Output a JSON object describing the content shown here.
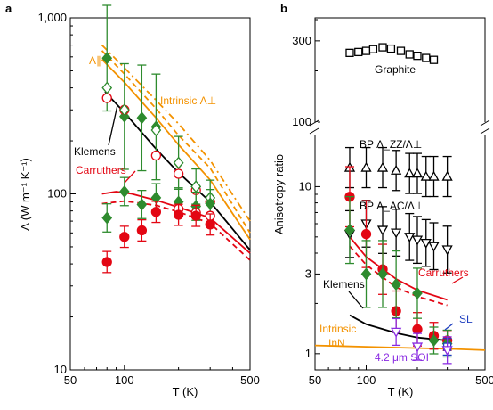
{
  "panels": [
    {
      "label": "a"
    },
    {
      "label": "b"
    }
  ],
  "colors": {
    "orange": "#F39200",
    "red": "#E30613",
    "green": "#2E8B2E",
    "black": "#000000",
    "purple": "#8A2BE2",
    "blue": "#1F3FBF"
  },
  "chart_data": [
    {
      "panel": "a",
      "type": "line",
      "xscale": "log",
      "yscale": "log",
      "xlabel": "T (K)",
      "ylabel": "Λ (W m⁻¹ K⁻¹)",
      "xlim": [
        50,
        500
      ],
      "ylim": [
        10,
        1000
      ],
      "xticks": [
        {
          "v": 50,
          "label": "50"
        },
        {
          "v": 100,
          "label": "100"
        },
        {
          "v": 500,
          "label": "500"
        }
      ],
      "yticks": [
        {
          "v": 10,
          "label": "10"
        },
        {
          "v": 100,
          "label": "100"
        },
        {
          "v": 1000,
          "label": "1,000"
        }
      ],
      "annotations": {
        "para": "Λ∥",
        "intrinsic_perp": "Intrinsic Λ⊥",
        "klemens": "Klemens",
        "carruthers": "Carruthers"
      },
      "curves": [
        {
          "key": "para_model",
          "color": "orange",
          "dash": "8,4,2,4",
          "x": [
            75,
            100,
            150,
            200,
            300,
            500
          ],
          "y": [
            700,
            520,
            340,
            250,
            155,
            70
          ]
        },
        {
          "key": "perp_intrinsic_solid",
          "color": "orange",
          "dash": "",
          "x": [
            75,
            100,
            150,
            200,
            300,
            500
          ],
          "y": [
            580,
            430,
            270,
            190,
            120,
            55
          ]
        },
        {
          "key": "perp_intrinsic_dashed",
          "color": "orange",
          "dash": "6,4",
          "x": [
            75,
            100,
            150,
            200,
            300,
            500
          ],
          "y": [
            650,
            480,
            305,
            215,
            140,
            60
          ]
        },
        {
          "key": "klemens",
          "color": "black",
          "dash": "",
          "x": [
            78,
            100,
            150,
            200,
            300,
            500
          ],
          "y": [
            380,
            290,
            180,
            132,
            90,
            48
          ]
        },
        {
          "key": "carruthers_solid",
          "color": "red",
          "dash": "",
          "x": [
            75,
            90,
            110,
            150,
            200,
            300,
            500
          ],
          "y": [
            100,
            103,
            100,
            92,
            84,
            73,
            46
          ]
        },
        {
          "key": "carruthers_dashed",
          "color": "red",
          "dash": "6,4",
          "x": [
            75,
            100,
            150,
            200,
            300,
            500
          ],
          "y": [
            88,
            91,
            86,
            79,
            68,
            42
          ]
        }
      ],
      "series": [
        {
          "key": "green_diamond_top",
          "color": "green",
          "marker": "diamond",
          "fill": true,
          "x": [
            80,
            100,
            125,
            150,
            200,
            250,
            300
          ],
          "y": [
            590,
            275,
            270,
            240,
            150,
            110,
            95
          ],
          "err": [
            0.3,
            0.3,
            0.3,
            0.3,
            0.15,
            0.1,
            0.1
          ]
        },
        {
          "key": "open_circle_top",
          "color": "red",
          "marker": "circle",
          "fill": false,
          "x": [
            80,
            100,
            150,
            200,
            250,
            300
          ],
          "y": [
            350,
            300,
            165,
            130,
            105,
            90
          ],
          "err": [
            0,
            0,
            0,
            0,
            0,
            0
          ]
        },
        {
          "key": "open_diamond_top",
          "color": "green",
          "marker": "diamond",
          "fill": false,
          "x": [
            80,
            100,
            150,
            200,
            250,
            300
          ],
          "y": [
            400,
            300,
            230,
            150,
            110,
            95
          ],
          "err": [
            0,
            0,
            0,
            0,
            0,
            0
          ]
        },
        {
          "key": "green_diamond_mid",
          "color": "green",
          "marker": "diamond",
          "fill": true,
          "x": [
            80,
            100,
            125,
            150,
            200,
            250,
            300
          ],
          "y": [
            73,
            103,
            87,
            95,
            90,
            85,
            88
          ],
          "err": [
            0.08,
            0.08,
            0.08,
            0.08,
            0.08,
            0.08,
            0.08
          ]
        },
        {
          "key": "open_circle_mid",
          "color": "red",
          "marker": "circle",
          "fill": false,
          "x": [
            200,
            250,
            300
          ],
          "y": [
            82,
            78,
            75
          ],
          "err": [
            0,
            0,
            0
          ]
        },
        {
          "key": "red_circle",
          "color": "red",
          "marker": "circle",
          "fill": true,
          "x": [
            80,
            100,
            125,
            150,
            200,
            250,
            300
          ],
          "y": [
            41,
            57,
            62,
            79,
            76,
            75,
            67
          ],
          "err": [
            0.06,
            0.06,
            0.06,
            0.06,
            0.06,
            0.06,
            0.06
          ]
        }
      ]
    },
    {
      "panel": "b",
      "type": "scatter",
      "xscale": "log",
      "yscale": "log-broken",
      "xlabel": "T (K)",
      "ylabel": "Anisotropy ratio",
      "xlim": [
        50,
        500
      ],
      "ylim_lower": [
        0.8,
        20
      ],
      "ylim_upper": [
        100,
        400
      ],
      "xticks": [
        {
          "v": 50,
          "label": "50"
        },
        {
          "v": 100,
          "label": "100"
        },
        {
          "v": 500,
          "label": "500"
        }
      ],
      "yticks_lower": [
        {
          "v": 1,
          "label": "1"
        },
        {
          "v": 3,
          "label": "3"
        },
        {
          "v": 10,
          "label": "10"
        }
      ],
      "yticks_upper": [
        {
          "v": 100,
          "label": "100"
        },
        {
          "v": 300,
          "label": "300"
        }
      ],
      "annotations": {
        "graphite": "Graphite",
        "bp_zz": "BP Λ_ZZ/Λ⊥",
        "bp_ac": "BP Λ_AC/Λ⊥",
        "carruthers": "Carruthers",
        "klemens": "Klemens",
        "intrinsic": "Intrinsic",
        "inn": "InN",
        "sl": "SL",
        "soi": "4.2 μm SOI"
      },
      "curves": [
        {
          "key": "carruthers_solid",
          "color": "red",
          "dash": "",
          "x": [
            80,
            100,
            150,
            200,
            300
          ],
          "y": [
            5.0,
            3.8,
            2.8,
            2.4,
            2.1
          ]
        },
        {
          "key": "carruthers_dashed",
          "color": "red",
          "dash": "6,4",
          "x": [
            80,
            100,
            150,
            200,
            300
          ],
          "y": [
            4.4,
            3.4,
            2.5,
            2.2,
            1.95
          ]
        },
        {
          "key": "klemens",
          "color": "black",
          "dash": "",
          "x": [
            80,
            100,
            150,
            200,
            300
          ],
          "y": [
            1.7,
            1.5,
            1.33,
            1.25,
            1.2
          ]
        },
        {
          "key": "intrinsic_inn",
          "color": "orange",
          "dash": "",
          "x": [
            50,
            100,
            200,
            300,
            500
          ],
          "y": [
            1.12,
            1.1,
            1.08,
            1.07,
            1.05
          ]
        }
      ],
      "series": [
        {
          "key": "graphite",
          "color": "black",
          "marker": "square",
          "fill": false,
          "x": [
            80,
            90,
            100,
            110,
            125,
            140,
            160,
            180,
            200,
            225,
            250
          ],
          "y": [
            255,
            258,
            262,
            268,
            275,
            270,
            262,
            250,
            245,
            238,
            232
          ],
          "err": [
            0,
            0,
            0,
            0,
            0,
            0,
            0,
            0,
            0,
            0,
            0
          ]
        },
        {
          "key": "bp_zz",
          "color": "black",
          "marker": "triangle-up",
          "fill": false,
          "x": [
            80,
            100,
            125,
            150,
            180,
            200,
            225,
            250,
            300
          ],
          "y": [
            13,
            13,
            13,
            12.5,
            12,
            12,
            11.5,
            11.5,
            11.5
          ],
          "err": [
            0.12,
            0.12,
            0.12,
            0.12,
            0.12,
            0.12,
            0.12,
            0.12,
            0.12
          ]
        },
        {
          "key": "bp_ac",
          "color": "black",
          "marker": "triangle-down",
          "fill": false,
          "x": [
            80,
            100,
            125,
            150,
            180,
            200,
            225,
            250,
            300
          ],
          "y": [
            5.2,
            6.0,
            5.5,
            5.3,
            5.0,
            4.8,
            4.6,
            4.4,
            4.2
          ],
          "err": [
            0.14,
            0.14,
            0.14,
            0.14,
            0.14,
            0.14,
            0.14,
            0.14,
            0.14
          ]
        },
        {
          "key": "red_circle",
          "color": "red",
          "marker": "circle",
          "fill": true,
          "x": [
            80,
            100,
            125,
            150,
            200,
            250,
            300
          ],
          "y": [
            8.7,
            5.2,
            3.2,
            1.8,
            1.4,
            1.28,
            1.2
          ],
          "err": [
            0.18,
            0.2,
            0.15,
            0.12,
            0.1,
            0.08,
            0.06
          ]
        },
        {
          "key": "green_diamond",
          "color": "green",
          "marker": "diamond",
          "fill": true,
          "x": [
            80,
            100,
            125,
            150,
            200,
            250,
            300
          ],
          "y": [
            5.5,
            3.0,
            3.0,
            2.6,
            2.3,
            1.2,
            1.15
          ],
          "err": [
            0.2,
            0.2,
            0.2,
            0.2,
            0.15,
            0.08,
            0.08
          ]
        },
        {
          "key": "sl",
          "color": "blue",
          "marker": "square",
          "fill": false,
          "x": [
            300
          ],
          "y": [
            1.1
          ],
          "err": [
            0.05
          ]
        },
        {
          "key": "soi",
          "color": "purple",
          "marker": "triangle-down",
          "fill": false,
          "x": [
            150,
            200,
            300
          ],
          "y": [
            1.35,
            1.1,
            1.05
          ],
          "err": [
            0.08,
            0.08,
            0.08
          ]
        }
      ]
    }
  ]
}
